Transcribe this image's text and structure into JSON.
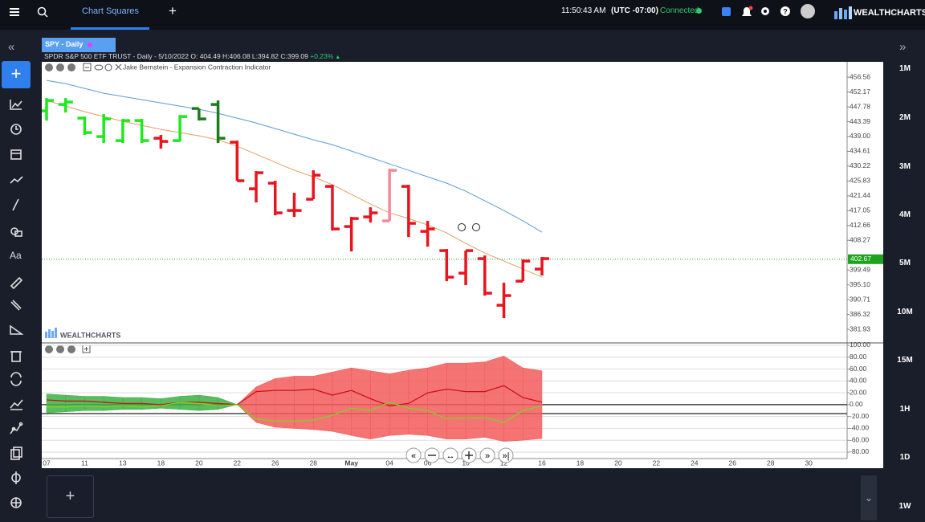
{
  "topbar": {
    "tab": "Chart Squares",
    "time": "11:50:43 AM",
    "timezone": "(UTC -07:00)",
    "status": "Connected",
    "brand": "WEALTHCHARTS"
  },
  "symbol_tab": "SPY - Daily",
  "info": {
    "name": "SPDR S&P 500 ETF TRUST",
    "details": " - Daily - 5/10/2022 O: 404.49 H:406.08 L:394.82 C:399.09",
    "change": "+0.23%"
  },
  "indicator_label": "Jake Bernstein - Expansion Contraction Indicator",
  "watermark": "WEALTHCHARTS",
  "timeframes": [
    "1M",
    "2M",
    "3M",
    "4M",
    "5M",
    "10M",
    "15M",
    "1H",
    "1D",
    "1W"
  ],
  "chart_data": [
    {
      "type": "ohlc",
      "categories": [
        "07",
        null,
        "11",
        null,
        "13",
        null,
        "18",
        null,
        "20",
        null,
        "22",
        null,
        "26",
        null,
        "28",
        null,
        "May",
        null,
        "04",
        null,
        "06",
        null,
        "10",
        null,
        "12",
        null,
        "16",
        null,
        "18",
        null,
        "20",
        null,
        "22",
        null,
        "24",
        null,
        "26",
        null,
        "28",
        null,
        "30"
      ],
      "open": [
        446.58,
        448.48,
        444.44,
        438.97,
        437.78,
        443.72,
        438.49,
        437.78,
        447.29,
        448.48,
        437.31,
        423.52,
        425.18,
        417.1,
        420.43,
        424.23,
        412.35,
        415.2,
        414.01,
        424.23,
        410.92,
        405.22,
        398.56,
        402.84,
        389.05,
        396.18,
        399.75,
        null,
        null,
        null,
        null,
        null,
        null,
        null,
        null,
        null,
        null,
        null,
        null,
        null,
        null
      ],
      "high": [
        450.38,
        450.38,
        444.91,
        445.63,
        444.2,
        444.2,
        439.45,
        445.39,
        447.29,
        449.67,
        437.78,
        428.75,
        425.9,
        422.33,
        428.99,
        424.71,
        415.2,
        418.05,
        429.46,
        424.71,
        414.01,
        405.69,
        405.22,
        403.79,
        395.71,
        402.6,
        403.32,
        null,
        null,
        null,
        null,
        null,
        null,
        null,
        null,
        null,
        null,
        null,
        null,
        null,
        null
      ],
      "low": [
        443.72,
        446.1,
        439.45,
        437.07,
        437.07,
        437.07,
        435.4,
        437.54,
        443.72,
        437.07,
        425.9,
        419.48,
        415.68,
        415.2,
        420.43,
        411.16,
        404.98,
        413.54,
        414.01,
        409.26,
        406.41,
        396.18,
        395.0,
        391.91,
        385.25,
        396.18,
        397.85,
        null,
        null,
        null,
        null,
        null,
        null,
        null,
        null,
        null,
        null,
        null,
        null,
        null,
        null
      ],
      "close": [
        449.67,
        449.19,
        440.16,
        444.2,
        443.72,
        437.78,
        437.54,
        444.91,
        444.2,
        438.49,
        425.9,
        428.27,
        416.39,
        417.1,
        427.56,
        411.63,
        414.72,
        416.39,
        428.99,
        413.3,
        411.63,
        397.37,
        405.22,
        392.62,
        391.91,
        402.13,
        402.84,
        null,
        null,
        null,
        null,
        null,
        null,
        null,
        null,
        null,
        null,
        null,
        null,
        null,
        null
      ],
      "bar_colors": [
        "#1ee81e",
        "#1ee81e",
        "#1ee81e",
        "#1ee81e",
        "#1ee81e",
        "#1ee81e",
        "#e8141e",
        "#1ee81e",
        "#1b7d1b",
        "#1b7d1b",
        "#e8141e",
        "#e8141e",
        "#e8141e",
        "#e8141e",
        "#e8141e",
        "#e8141e",
        "#e8141e",
        "#e8141e",
        "#f4899b",
        "#e8141e",
        "#e8141e",
        "#e8141e",
        "#e8141e",
        "#e8141e",
        "#e8141e",
        "#e8141e",
        "#e8141e",
        null,
        null,
        null,
        null,
        null,
        null,
        null,
        null,
        null,
        null,
        null,
        null,
        null,
        null
      ],
      "series": [
        {
          "color": "#5b9bd5",
          "values": [
            455.61,
            454.66,
            453.23,
            451.81,
            450.86,
            449.91,
            448.95,
            448.0,
            447.05,
            445.86,
            444.43,
            443.01,
            441.35,
            439.68,
            438.02,
            436.59,
            434.69,
            432.79,
            430.89,
            428.99,
            427.08,
            425.18,
            422.81,
            419.95,
            417.1,
            414.01,
            410.69,
            null,
            null,
            null,
            null,
            null,
            null,
            null,
            null,
            null,
            null,
            null,
            null,
            null,
            null
          ]
        },
        {
          "color": "#e0a060",
          "values": [
            449.67,
            448.0,
            446.34,
            444.91,
            443.49,
            442.3,
            441.11,
            440.16,
            439.21,
            438.02,
            436.12,
            433.74,
            431.37,
            428.99,
            427.08,
            424.71,
            421.86,
            419.0,
            416.39,
            414.72,
            412.82,
            410.45,
            407.35,
            404.5,
            402.13,
            399.75,
            397.37,
            null,
            null,
            null,
            null,
            null,
            null,
            null,
            null,
            null,
            null,
            null,
            null,
            null,
            null
          ]
        }
      ],
      "last_price": 402.67,
      "last_color": "#1fa31f",
      "ylim": [
        377.9,
        461.1
      ],
      "yticks": [
        456.56,
        452.17,
        447.78,
        443.39,
        {
          "value": 439.0,
          "label": "439.00"
        },
        434.61,
        430.22,
        425.83,
        421.44,
        417.05,
        412.66,
        408.27,
        399.49,
        {
          "value": 395.1,
          "label": "395.10"
        },
        390.71,
        386.32,
        381.93
      ]
    },
    {
      "type": "band",
      "series": [
        {
          "color": "#c0392b",
          "values": [
            18,
            16,
            14,
            14,
            12,
            12,
            10,
            14,
            16,
            12,
            0,
            30,
            44,
            48,
            48,
            55,
            62,
            57,
            52,
            58,
            62,
            70,
            70,
            72,
            82,
            62,
            57,
            null,
            null,
            null,
            null,
            null,
            null,
            null,
            null,
            null,
            null,
            null,
            null,
            null,
            null
          ]
        },
        {
          "color": "#c0392b",
          "values": [
            -14,
            -12,
            -10,
            -10,
            -8,
            -8,
            -6,
            -8,
            -10,
            -8,
            0,
            -30,
            -38,
            -40,
            -42,
            -45,
            -52,
            -58,
            -52,
            -50,
            -52,
            -58,
            -58,
            -55,
            -62,
            -60,
            -57,
            null,
            null,
            null,
            null,
            null,
            null,
            null,
            null,
            null,
            null,
            null,
            null,
            null,
            null
          ]
        },
        {
          "color": "#d0101a",
          "values": [
            8,
            6,
            6,
            4,
            2,
            2,
            0,
            4,
            4,
            2,
            0,
            22,
            24,
            24,
            26,
            16,
            24,
            10,
            -2,
            2,
            20,
            26,
            22,
            22,
            32,
            12,
            4,
            null,
            null,
            null,
            null,
            null,
            null,
            null,
            null,
            null,
            null,
            null,
            null,
            null,
            null
          ]
        },
        {
          "color": "#7fd320",
          "values": [
            -4,
            -4,
            -2,
            -4,
            -2,
            -4,
            -2,
            4,
            2,
            -2,
            0,
            -24,
            -28,
            -28,
            -26,
            -18,
            -6,
            -10,
            4,
            -6,
            -10,
            -24,
            -22,
            -22,
            -30,
            -10,
            -2,
            null,
            null,
            null,
            null,
            null,
            null,
            null,
            null,
            null,
            null,
            null,
            null,
            null,
            null
          ]
        }
      ],
      "band_colors": [
        "#3cb043",
        "#3cb043",
        "#3cb043",
        "#3cb043",
        "#3cb043",
        "#3cb043",
        "#3cb043",
        "#3cb043",
        "#3cb043",
        "#3cb043",
        "#f25a5a",
        "#f25a5a",
        "#f25a5a",
        "#f25a5a",
        "#f25a5a",
        "#f25a5a",
        "#f25a5a",
        "#f25a5a",
        "#f25a5a",
        "#f25a5a",
        "#f25a5a",
        "#f25a5a",
        "#f25a5a",
        "#f25a5a",
        "#f25a5a",
        "#f25a5a",
        "#f25a5a",
        null,
        null,
        null,
        null,
        null,
        null,
        null,
        null,
        null,
        null,
        null,
        null,
        null,
        null
      ],
      "ylim": [
        -89.5,
        102.7
      ],
      "grid": true,
      "yticks": [
        {
          "value": 100,
          "label": "100.00"
        },
        {
          "value": 80,
          "label": "80.00"
        },
        {
          "value": 60,
          "label": "60.00"
        },
        {
          "value": 40,
          "label": "40.00"
        },
        {
          "value": 20,
          "label": "20.00"
        },
        {
          "value": 0,
          "label": "0.00"
        },
        {
          "value": -20,
          "label": "-20.00"
        },
        {
          "value": -40,
          "label": "-40.00"
        },
        {
          "value": -60,
          "label": "-60.00"
        },
        {
          "value": -80,
          "label": "-80.00"
        }
      ]
    }
  ]
}
